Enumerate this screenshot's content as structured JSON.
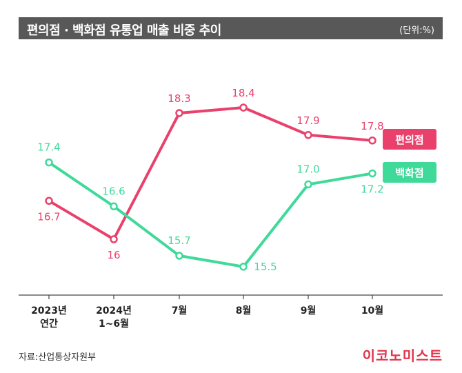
{
  "header": {
    "title": "편의점 · 백화점 유통업 매출 비중 추이",
    "unit": "(단위:%)"
  },
  "footer": {
    "source": "자료:산업통상자원부",
    "logo": "이코노미스트"
  },
  "chart_data": {
    "type": "line",
    "title": "편의점 · 백화점 유통업 매출 비중 추이",
    "unit": "(단위:%)",
    "categories": [
      "2023년\n연간",
      "2024년\n1~6월",
      "7월",
      "8월",
      "9월",
      "10월"
    ],
    "ylim": [
      15,
      19
    ],
    "grid": false,
    "legend": "right",
    "series": [
      {
        "name": "편의점",
        "color": "#e9416b",
        "values": [
          16.7,
          16.0,
          18.3,
          18.4,
          17.9,
          17.8
        ],
        "labels": [
          "16.7",
          "16",
          "18.3",
          "18.4",
          "17.9",
          "17.8"
        ]
      },
      {
        "name": "백화점",
        "color": "#3fd99a",
        "values": [
          17.4,
          16.6,
          15.7,
          15.5,
          17.0,
          17.2
        ],
        "labels": [
          "17.4",
          "16.6",
          "15.7",
          "15.5",
          "17.0",
          "17.2"
        ]
      }
    ]
  }
}
